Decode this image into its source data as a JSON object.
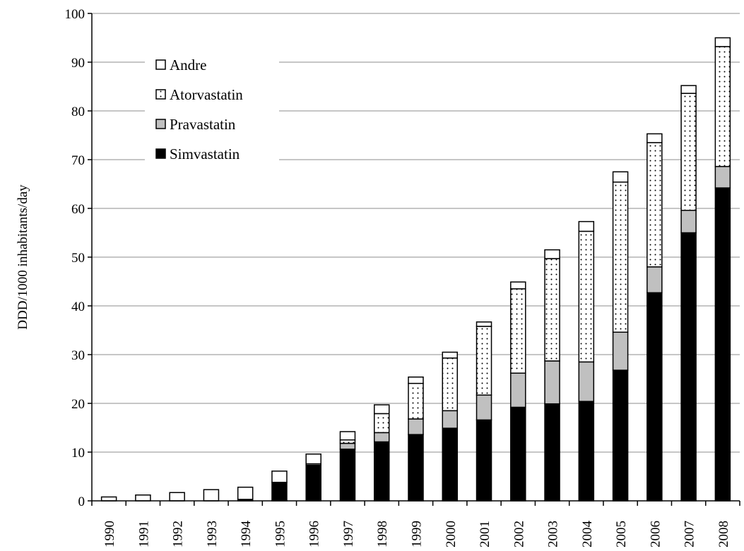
{
  "chart_data": {
    "type": "bar",
    "stacked": true,
    "title": "",
    "xlabel": "",
    "ylabel": "DDD/1000 inhabitants/day",
    "ylim": [
      0,
      100
    ],
    "yticks": [
      0,
      10,
      20,
      30,
      40,
      50,
      60,
      70,
      80,
      90,
      100
    ],
    "grid": true,
    "legend_position": "top-left",
    "categories": [
      "1990",
      "1991",
      "1992",
      "1993",
      "1994",
      "1995",
      "1996",
      "1997",
      "1998",
      "1999",
      "2000",
      "2001",
      "2002",
      "2003",
      "2004",
      "2005",
      "2006",
      "2007",
      "2008"
    ],
    "series": [
      {
        "name": "Simvastatin",
        "pattern": "solid",
        "color": "#000000",
        "values": [
          0,
          0,
          0,
          0,
          0.3,
          3.8,
          7.3,
          10.6,
          12.1,
          13.6,
          14.9,
          16.6,
          19.2,
          19.9,
          20.4,
          26.8,
          42.7,
          55.0,
          64.2
        ]
      },
      {
        "name": "Pravastatin",
        "pattern": "solid",
        "color": "#c0c0c0",
        "values": [
          0,
          0,
          0,
          0,
          0,
          0,
          0.3,
          1.2,
          1.9,
          3.2,
          3.6,
          5.1,
          7.0,
          8.8,
          8.1,
          7.8,
          5.3,
          4.6,
          4.4
        ]
      },
      {
        "name": "Atorvastatin",
        "pattern": "dotted",
        "color": "#ffffff",
        "values": [
          0,
          0,
          0,
          0,
          0,
          0,
          0,
          0.7,
          3.9,
          7.3,
          10.8,
          14.1,
          17.3,
          21.0,
          26.8,
          30.8,
          25.5,
          24.0,
          24.6
        ]
      },
      {
        "name": "Andre",
        "pattern": "solid",
        "color": "#ffffff",
        "values": [
          0.8,
          1.2,
          1.7,
          2.3,
          2.5,
          2.3,
          2.0,
          1.7,
          1.8,
          1.3,
          1.2,
          0.9,
          1.4,
          1.8,
          2.0,
          2.1,
          1.8,
          1.6,
          1.8
        ]
      }
    ]
  }
}
